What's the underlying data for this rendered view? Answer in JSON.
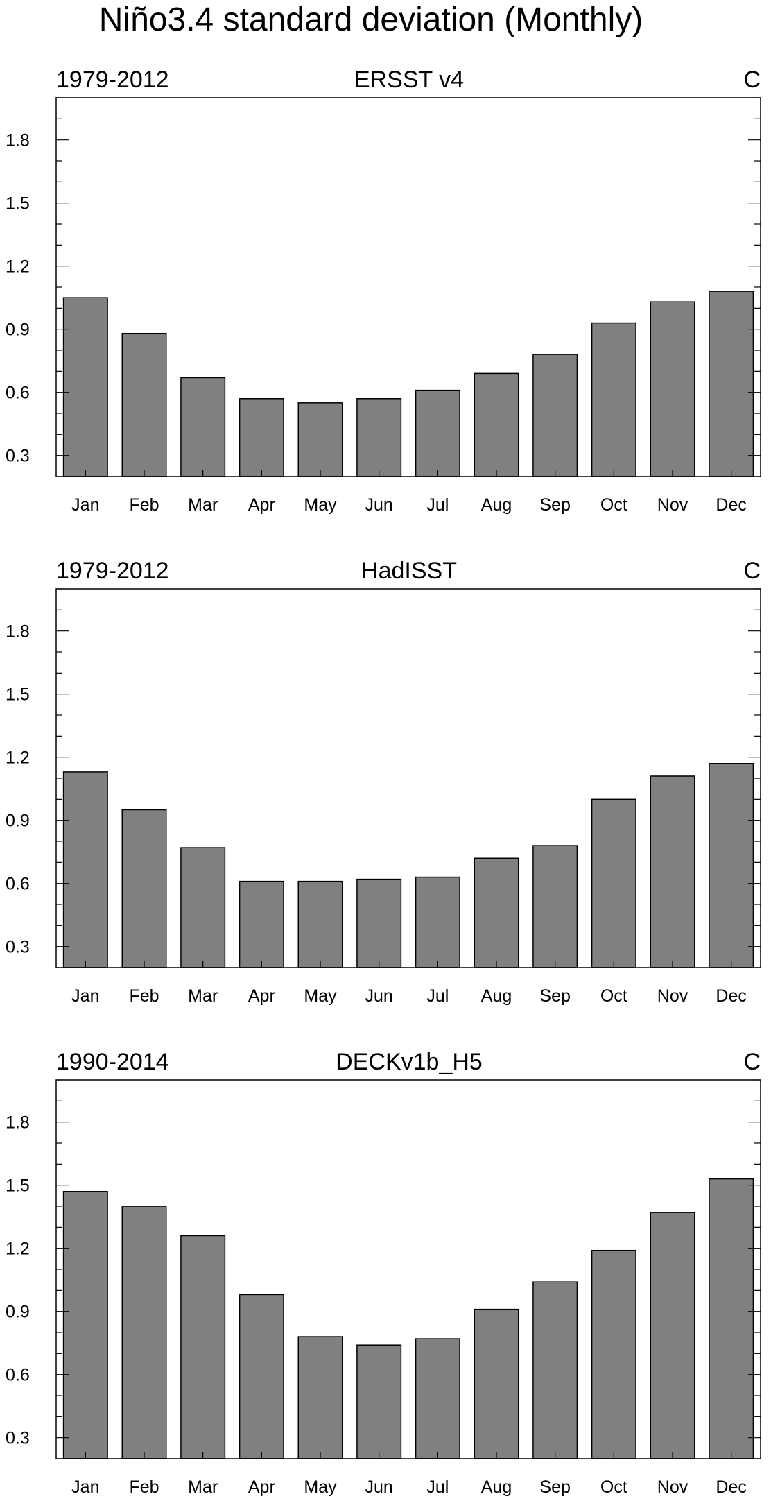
{
  "title": "Niño3.4 standard deviation (Monthly)",
  "colors": {
    "bar_fill": "#808080",
    "bar_stroke": "#000000",
    "axis": "#000000",
    "background": "#ffffff"
  },
  "chart_data": [
    {
      "type": "bar",
      "left_label": "1979-2012",
      "title": "ERSST v4",
      "units": "C",
      "categories": [
        "Jan",
        "Feb",
        "Mar",
        "Apr",
        "May",
        "Jun",
        "Jul",
        "Aug",
        "Sep",
        "Oct",
        "Nov",
        "Dec"
      ],
      "values": [
        1.05,
        0.88,
        0.67,
        0.57,
        0.55,
        0.57,
        0.61,
        0.69,
        0.78,
        0.93,
        1.03,
        1.08
      ],
      "ylim": [
        0.2,
        2.0
      ],
      "yticks": [
        0.3,
        0.6,
        0.9,
        1.2,
        1.5,
        1.8
      ],
      "ytick_labels": [
        "0.3",
        "0.6",
        "0.9",
        "1.2",
        "1.5",
        "1.8"
      ]
    },
    {
      "type": "bar",
      "left_label": "1979-2012",
      "title": "HadISST",
      "units": "C",
      "categories": [
        "Jan",
        "Feb",
        "Mar",
        "Apr",
        "May",
        "Jun",
        "Jul",
        "Aug",
        "Sep",
        "Oct",
        "Nov",
        "Dec"
      ],
      "values": [
        1.13,
        0.95,
        0.77,
        0.61,
        0.61,
        0.62,
        0.63,
        0.72,
        0.78,
        1.0,
        1.11,
        1.17
      ],
      "ylim": [
        0.2,
        2.0
      ],
      "yticks": [
        0.3,
        0.6,
        0.9,
        1.2,
        1.5,
        1.8
      ],
      "ytick_labels": [
        "0.3",
        "0.6",
        "0.9",
        "1.2",
        "1.5",
        "1.8"
      ]
    },
    {
      "type": "bar",
      "left_label": "1990-2014",
      "title": "DECKv1b_H5",
      "units": "C",
      "categories": [
        "Jan",
        "Feb",
        "Mar",
        "Apr",
        "May",
        "Jun",
        "Jul",
        "Aug",
        "Sep",
        "Oct",
        "Nov",
        "Dec"
      ],
      "values": [
        1.47,
        1.4,
        1.26,
        0.98,
        0.78,
        0.74,
        0.77,
        0.91,
        1.04,
        1.19,
        1.37,
        1.53
      ],
      "ylim": [
        0.2,
        2.0
      ],
      "yticks": [
        0.3,
        0.6,
        0.9,
        1.2,
        1.5,
        1.8
      ],
      "ytick_labels": [
        "0.3",
        "0.6",
        "0.9",
        "1.2",
        "1.5",
        "1.8"
      ]
    }
  ]
}
